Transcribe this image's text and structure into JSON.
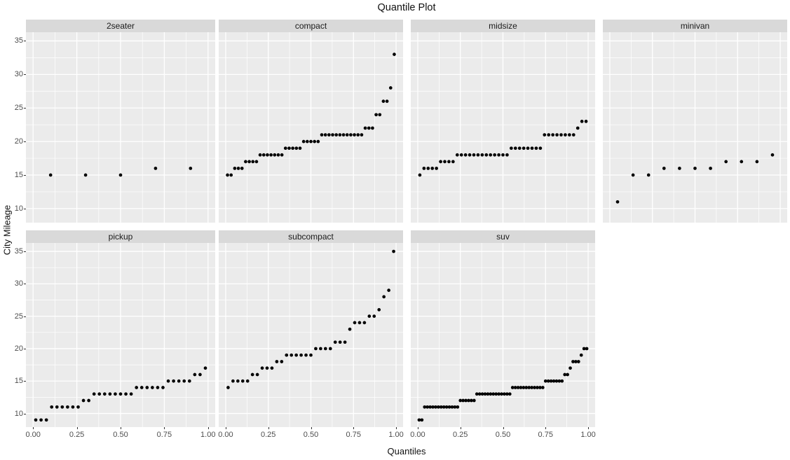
{
  "title": "Quantile Plot",
  "axes": {
    "x_label": "Quantiles",
    "y_label": "City Mileage",
    "x_tick_labels": [
      "0.00",
      "0.25",
      "0.50",
      "0.75",
      "1.00"
    ],
    "y_tick_labels": [
      "10",
      "15",
      "20",
      "25",
      "30",
      "35"
    ]
  },
  "colors": {
    "background": "#FFFFFF",
    "panel_background": "#EBEBEB",
    "strip_background": "#D9D9D9",
    "gridline": "#FFFFFF",
    "point": "#000000",
    "tick_label": "#4D4D4D",
    "tick_mark": "#333333",
    "text": "#1A1A1A"
  },
  "chart_data": {
    "type": "scatter",
    "title": "Quantile Plot",
    "xlabel": "Quantiles",
    "ylabel": "City Mileage",
    "facet_layout": "2 rows x 4 cols; row1: 2seater, compact, midsize, minivan; row2: pickup, subcompact, suv",
    "x_rule": "x position of i-th sorted value is quantile (i-0.5)/n",
    "xlim": [
      -0.041,
      1.041
    ],
    "ylim": [
      7.9,
      36.3
    ],
    "x_major_ticks": [
      0,
      0.25,
      0.5,
      0.75,
      1.0
    ],
    "x_minor_ticks": [
      0.125,
      0.375,
      0.625,
      0.875
    ],
    "y_major_ticks": [
      10,
      15,
      20,
      25,
      30,
      35
    ],
    "y_minor_ticks": [
      12.5,
      17.5,
      22.5,
      27.5,
      32.5
    ],
    "grid": "white major+minor gridlines on gray panel",
    "legend": "none",
    "facets": [
      {
        "label": "2seater",
        "n": 5,
        "values": [
          15,
          15,
          15,
          16,
          16
        ]
      },
      {
        "label": "compact",
        "n": 47,
        "values": [
          15,
          15,
          16,
          16,
          16,
          17,
          17,
          17,
          17,
          18,
          18,
          18,
          18,
          18,
          18,
          18,
          19,
          19,
          19,
          19,
          19,
          20,
          20,
          20,
          20,
          20,
          21,
          21,
          21,
          21,
          21,
          21,
          21,
          21,
          21,
          21,
          21,
          21,
          22,
          22,
          22,
          24,
          24,
          26,
          26,
          28,
          33
        ]
      },
      {
        "label": "midsize",
        "n": 41,
        "values": [
          15,
          16,
          16,
          16,
          16,
          17,
          17,
          17,
          17,
          18,
          18,
          18,
          18,
          18,
          18,
          18,
          18,
          18,
          18,
          18,
          18,
          18,
          19,
          19,
          19,
          19,
          19,
          19,
          19,
          19,
          21,
          21,
          21,
          21,
          21,
          21,
          21,
          21,
          22,
          23,
          23
        ]
      },
      {
        "label": "minivan",
        "n": 11,
        "values": [
          11,
          15,
          15,
          16,
          16,
          16,
          16,
          17,
          17,
          17,
          18
        ]
      },
      {
        "label": "pickup",
        "n": 33,
        "values": [
          9,
          9,
          9,
          11,
          11,
          11,
          11,
          11,
          11,
          12,
          12,
          13,
          13,
          13,
          13,
          13,
          13,
          13,
          13,
          14,
          14,
          14,
          14,
          14,
          14,
          15,
          15,
          15,
          15,
          15,
          16,
          16,
          17
        ]
      },
      {
        "label": "subcompact",
        "n": 35,
        "values": [
          14,
          15,
          15,
          15,
          15,
          16,
          16,
          17,
          17,
          17,
          18,
          18,
          19,
          19,
          19,
          19,
          19,
          19,
          20,
          20,
          20,
          20,
          21,
          21,
          21,
          23,
          24,
          24,
          24,
          25,
          25,
          26,
          28,
          29,
          35
        ]
      },
      {
        "label": "suv",
        "n": 62,
        "values": [
          9,
          9,
          11,
          11,
          11,
          11,
          11,
          11,
          11,
          11,
          11,
          11,
          11,
          11,
          11,
          12,
          12,
          12,
          12,
          12,
          12,
          13,
          13,
          13,
          13,
          13,
          13,
          13,
          13,
          13,
          13,
          13,
          13,
          13,
          14,
          14,
          14,
          14,
          14,
          14,
          14,
          14,
          14,
          14,
          14,
          14,
          15,
          15,
          15,
          15,
          15,
          15,
          15,
          16,
          16,
          17,
          18,
          18,
          18,
          19,
          20,
          20
        ]
      }
    ]
  }
}
